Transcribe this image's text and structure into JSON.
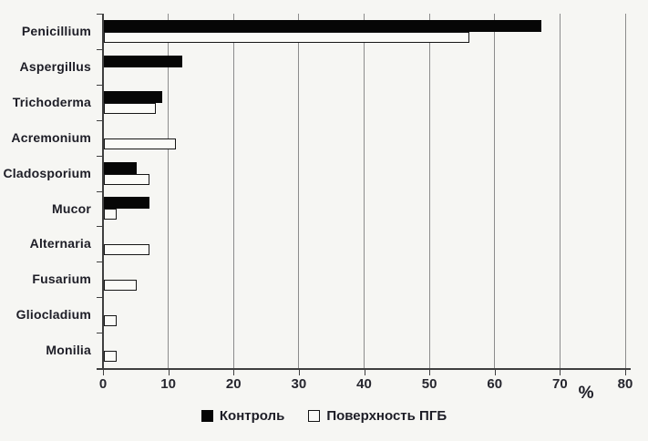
{
  "figure": {
    "background": "#f6f6f3"
  },
  "chart_data": {
    "type": "bar",
    "orientation": "horizontal",
    "title": "",
    "categories": [
      "Penicillium",
      "Aspergillus",
      "Trichoderma",
      "Acremonium",
      "Cladosporium",
      "Mucor",
      "Alternaria",
      "Fusarium",
      "Gliocladium",
      "Monilia"
    ],
    "series": [
      {
        "name": "Контроль",
        "values": [
          67,
          12,
          9,
          0,
          5,
          7,
          0,
          0,
          0,
          0
        ],
        "fill": "#060606",
        "border": "#060606"
      },
      {
        "name": "Поверхность ПГБ",
        "values": [
          56,
          0,
          8,
          11,
          7,
          2,
          7,
          5,
          2,
          2
        ],
        "fill": "#fbfbf8",
        "border": "#161616"
      }
    ],
    "xlabel": "%",
    "xlim": [
      0,
      80
    ],
    "xticks": [
      "0",
      "10",
      "20",
      "30",
      "40",
      "50",
      "60",
      "70",
      "80"
    ],
    "grid": true,
    "legend_position": "bottom",
    "colors": {
      "gridline": "#8c8c8c",
      "axis": "#3f3f3f",
      "text": "#1d1d26"
    }
  }
}
